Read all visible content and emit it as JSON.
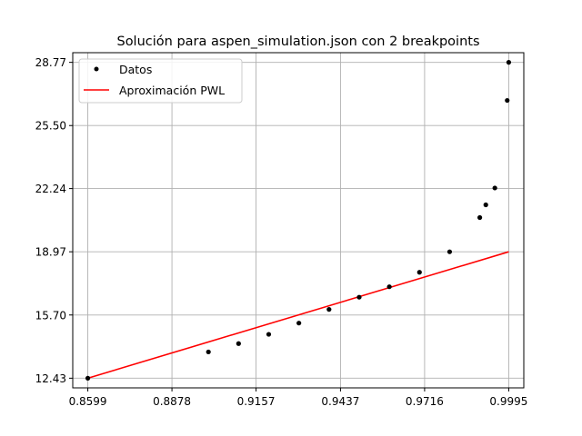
{
  "chart_data": {
    "type": "line",
    "title": "Solución para aspen_simulation.json con 2 breakpoints",
    "xlabel": "",
    "ylabel": "",
    "xlim": [
      0.8549,
      1.0045
    ],
    "ylim": [
      11.93,
      29.27
    ],
    "x_ticks": [
      {
        "value": 0.8599,
        "label": "0.8599"
      },
      {
        "value": 0.8878,
        "label": "0.8878"
      },
      {
        "value": 0.9157,
        "label": "0.9157"
      },
      {
        "value": 0.9437,
        "label": "0.9437"
      },
      {
        "value": 0.9716,
        "label": "0.9716"
      },
      {
        "value": 0.9995,
        "label": "0.9995"
      }
    ],
    "y_ticks": [
      {
        "value": 12.43,
        "label": "12.43"
      },
      {
        "value": 15.7,
        "label": "15.70"
      },
      {
        "value": 18.97,
        "label": "18.97"
      },
      {
        "value": 22.24,
        "label": "22.24"
      },
      {
        "value": 25.5,
        "label": "25.50"
      },
      {
        "value": 28.77,
        "label": "28.77"
      }
    ],
    "grid": true,
    "legend_position": "top-left",
    "series": [
      {
        "name": "Datos",
        "kind": "scatter",
        "color": "#000000",
        "points": [
          {
            "x": 0.8599,
            "y": 12.43
          },
          {
            "x": 0.8999,
            "y": 13.79
          },
          {
            "x": 0.9099,
            "y": 14.22
          },
          {
            "x": 0.9199,
            "y": 14.7
          },
          {
            "x": 0.9299,
            "y": 15.28
          },
          {
            "x": 0.9399,
            "y": 15.99
          },
          {
            "x": 0.9499,
            "y": 16.62
          },
          {
            "x": 0.9599,
            "y": 17.16
          },
          {
            "x": 0.9699,
            "y": 17.91
          },
          {
            "x": 0.9799,
            "y": 18.97
          },
          {
            "x": 0.9899,
            "y": 20.74
          },
          {
            "x": 0.9919,
            "y": 21.4
          },
          {
            "x": 0.9949,
            "y": 22.27
          },
          {
            "x": 0.999,
            "y": 26.8
          },
          {
            "x": 0.9995,
            "y": 28.77
          }
        ]
      },
      {
        "name": "Aproximación PWL",
        "kind": "line",
        "color": "#ff0000",
        "points": [
          {
            "x": 0.8599,
            "y": 12.43
          },
          {
            "x": 0.9995,
            "y": 18.97
          }
        ]
      }
    ]
  }
}
